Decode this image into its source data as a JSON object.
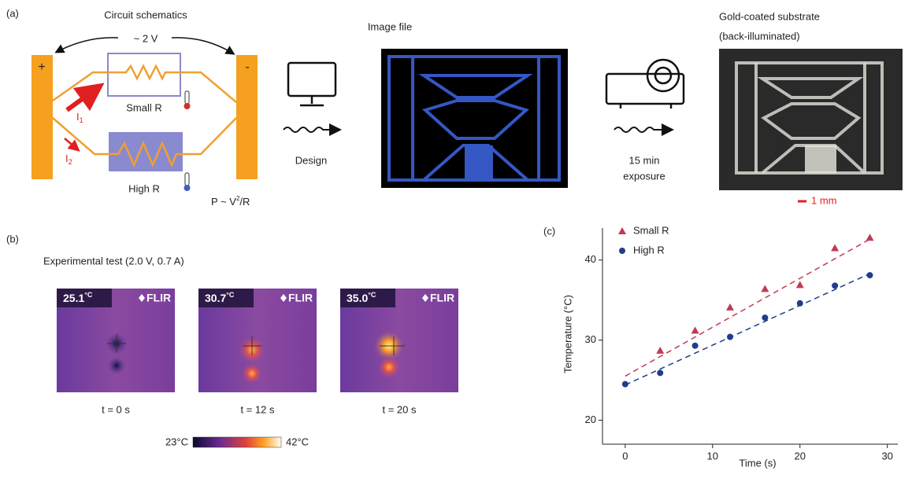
{
  "panel_a": {
    "label": "(a)",
    "schematic_title": "Circuit schematics",
    "voltage": "~ 2 V",
    "plus": "+",
    "minus": "-",
    "small_r": "Small R",
    "high_r": "High R",
    "current_1": {
      "symbol": "I",
      "subscript": "1"
    },
    "current_2": {
      "symbol": "I",
      "subscript": "2"
    },
    "power": {
      "lhs": "P ~ V",
      "superscript": "2",
      "rhs": "/R"
    },
    "design": "Design",
    "image_file_title": "Image file",
    "exposure": [
      "15 min",
      "exposure"
    ],
    "substrate_title": [
      "Gold-coated substrate",
      "(back-illuminated)"
    ],
    "scale_bar": "1 mm"
  },
  "panel_b": {
    "label": "(b)",
    "title": "Experimental test (2.0 V, 0.7 A)",
    "images": [
      {
        "temperature": "25.1",
        "unit": "°C",
        "brand": "FLIR",
        "time": "t = 0 s"
      },
      {
        "temperature": "30.7",
        "unit": "°C",
        "brand": "FLIR",
        "time": "t = 12 s"
      },
      {
        "temperature": "35.0",
        "unit": "°C",
        "brand": "FLIR",
        "time": "t = 20 s"
      }
    ],
    "colorbar": {
      "min": "23°C",
      "max": "42°C"
    }
  },
  "chart_data": {
    "type": "scatter",
    "label": "(c)",
    "x_label": "Time (s)",
    "y_label": "Temperature (°C)",
    "xlim": [
      -2.6,
      31.2
    ],
    "ylim": [
      17,
      44
    ],
    "xticks": [
      0,
      10,
      20,
      30
    ],
    "yticks": [
      20,
      30,
      40
    ],
    "legend": "upper left",
    "series": [
      {
        "name": "Small R",
        "color": "#c23a55",
        "marker": "triangle",
        "x": [
          4,
          8,
          12,
          16,
          20,
          24,
          28
        ],
        "values": [
          28.7,
          31.2,
          34.1,
          36.4,
          36.9,
          41.5,
          42.8
        ],
        "fit_x": [
          0,
          28
        ],
        "fit_values": [
          25.5,
          42.6
        ]
      },
      {
        "name": "High R",
        "color": "#1f3d8c",
        "marker": "circle",
        "x": [
          0,
          4,
          8,
          12,
          16,
          20,
          24,
          28
        ],
        "values": [
          24.5,
          25.9,
          29.3,
          30.4,
          32.8,
          34.6,
          36.8,
          38.1
        ],
        "fit_x": [
          0,
          28
        ],
        "fit_values": [
          24.4,
          38.3
        ]
      }
    ]
  }
}
